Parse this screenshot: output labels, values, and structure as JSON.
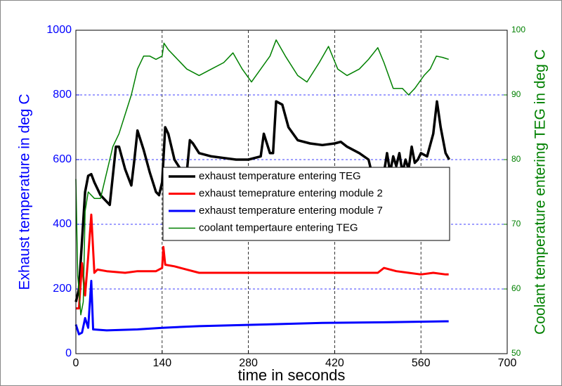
{
  "chart_data": {
    "type": "line",
    "xlabel": "time in seconds",
    "ylabel": "Exhaust temperature in deg C",
    "y2label": "Coolant temperature entering TEG in deg C",
    "xlim": [
      0,
      700
    ],
    "xticks": [
      0,
      140,
      280,
      420,
      560,
      700
    ],
    "ylim": [
      0,
      1000
    ],
    "yticks": [
      0,
      200,
      400,
      600,
      800,
      1000
    ],
    "y2lim": [
      50,
      100
    ],
    "y2ticks": [
      50,
      60,
      70,
      80,
      90,
      100
    ],
    "grid": true,
    "legend": "center",
    "ylabel_color": "#0000ff",
    "y2label_color": "#008000",
    "series": [
      {
        "name": "exhaust temperature entering TEG",
        "color": "#000000",
        "width": 3.5,
        "x": [
          0,
          5,
          10,
          15,
          20,
          25,
          30,
          40,
          50,
          55,
          60,
          65,
          70,
          80,
          90,
          95,
          100,
          110,
          120,
          130,
          135,
          140,
          145,
          150,
          160,
          170,
          180,
          185,
          190,
          200,
          220,
          240,
          260,
          280,
          300,
          305,
          315,
          320,
          325,
          335,
          345,
          360,
          380,
          400,
          420,
          430,
          440,
          460,
          475,
          480,
          490,
          500,
          505,
          510,
          515,
          520,
          525,
          530,
          535,
          540,
          545,
          550,
          555,
          560,
          570,
          580,
          586,
          592,
          600,
          606
        ],
        "values": [
          160,
          200,
          350,
          500,
          550,
          555,
          530,
          490,
          470,
          460,
          550,
          640,
          640,
          570,
          520,
          600,
          690,
          630,
          560,
          500,
          490,
          530,
          700,
          680,
          600,
          570,
          560,
          660,
          650,
          620,
          610,
          605,
          600,
          600,
          610,
          680,
          620,
          620,
          780,
          770,
          700,
          660,
          650,
          645,
          650,
          655,
          640,
          620,
          600,
          560,
          500,
          560,
          620,
          560,
          610,
          580,
          620,
          560,
          600,
          570,
          640,
          590,
          600,
          620,
          610,
          680,
          780,
          700,
          620,
          600
        ]
      },
      {
        "name": "exhaust temeprature entering module 2",
        "color": "#ff0000",
        "width": 3,
        "x": [
          0,
          5,
          10,
          15,
          20,
          25,
          30,
          35,
          50,
          80,
          100,
          130,
          140,
          142,
          145,
          160,
          180,
          200,
          300,
          450,
          490,
          500,
          520,
          540,
          560,
          580,
          600,
          605
        ],
        "values": [
          140,
          140,
          280,
          180,
          300,
          430,
          250,
          260,
          255,
          250,
          255,
          255,
          265,
          330,
          275,
          270,
          260,
          250,
          250,
          250,
          250,
          265,
          255,
          250,
          245,
          250,
          245,
          245
        ]
      },
      {
        "name": "exhaust temperature entering module 7",
        "color": "#0000ff",
        "width": 3,
        "x": [
          0,
          5,
          10,
          15,
          20,
          25,
          28,
          50,
          100,
          140,
          200,
          300,
          400,
          500,
          600,
          605
        ],
        "values": [
          90,
          60,
          65,
          110,
          80,
          225,
          75,
          72,
          75,
          80,
          85,
          90,
          95,
          97,
          100,
          100
        ]
      },
      {
        "name": "coolant tempertaure entering TEG",
        "color": "#008000",
        "width": 1.5,
        "axis": "y2",
        "x": [
          0,
          3,
          5,
          8,
          12,
          15,
          20,
          30,
          40,
          50,
          60,
          70,
          80,
          90,
          100,
          110,
          120,
          130,
          140,
          143,
          150,
          160,
          180,
          200,
          220,
          240,
          255,
          270,
          285,
          300,
          315,
          325,
          340,
          360,
          375,
          395,
          410,
          425,
          440,
          460,
          475,
          490,
          500,
          515,
          530,
          540,
          550,
          565,
          575,
          585,
          595,
          605
        ],
        "values": [
          77,
          62,
          60,
          56,
          58,
          72,
          75,
          74,
          74,
          78,
          82,
          84,
          87,
          90,
          94,
          96,
          96,
          95.5,
          96,
          98,
          97,
          96,
          94,
          93,
          94,
          95,
          96.5,
          94,
          92,
          94,
          96,
          98.5,
          96,
          93,
          92,
          95,
          97.5,
          94,
          93,
          94,
          95.5,
          97.3,
          95,
          91,
          91,
          90,
          91,
          93,
          94,
          96,
          95.8,
          95.5
        ]
      }
    ]
  }
}
